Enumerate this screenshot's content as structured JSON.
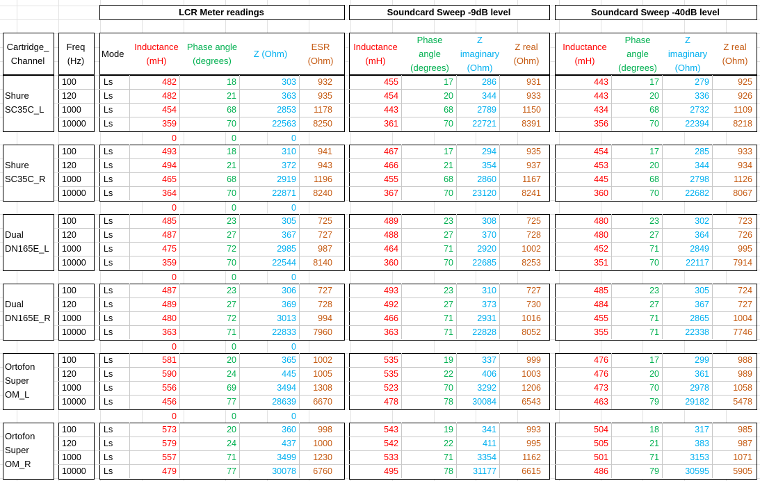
{
  "titles": {
    "lcr": "LCR Meter readings",
    "sweep9": "Soundcard Sweep -9dB level",
    "sweep40": "Soundcard Sweep -40dB level"
  },
  "headers": {
    "cartridge": [
      "Cartridge_",
      "Channel"
    ],
    "freq": [
      "Freq",
      "(Hz)"
    ],
    "mode": "Mode",
    "lcr": [
      [
        "Inductance",
        "(mH)"
      ],
      [
        "Phase angle",
        "(degrees)"
      ],
      [
        "Z (Ohm)"
      ],
      [
        "ESR",
        "(Ohm)"
      ]
    ],
    "sweep": [
      [
        "Inductance",
        "(mH)"
      ],
      [
        "Phase",
        "angle",
        "(degrees)"
      ],
      [
        "Z",
        "imaginary",
        "(Ohm)"
      ],
      [
        "Z real",
        "(Ohm)"
      ]
    ]
  },
  "colors": {
    "inductance": "#ff0000",
    "phase": "#00b050",
    "z": "#00b0f0",
    "esr": "#c55a11"
  },
  "groups": [
    {
      "name": [
        "Shure",
        "SC35C_L"
      ],
      "rows": [
        {
          "f": "100",
          "m": "Ls",
          "lcr": [
            "482",
            "18",
            "303",
            "932"
          ],
          "s9": [
            "455",
            "17",
            "286",
            "931"
          ],
          "s40": [
            "443",
            "17",
            "279",
            "925"
          ]
        },
        {
          "f": "120",
          "m": "Ls",
          "lcr": [
            "482",
            "21",
            "363",
            "935"
          ],
          "s9": [
            "454",
            "20",
            "344",
            "933"
          ],
          "s40": [
            "443",
            "20",
            "336",
            "926"
          ]
        },
        {
          "f": "1000",
          "m": "Ls",
          "lcr": [
            "454",
            "68",
            "2853",
            "1178"
          ],
          "s9": [
            "443",
            "68",
            "2789",
            "1150"
          ],
          "s40": [
            "434",
            "68",
            "2732",
            "1109"
          ]
        },
        {
          "f": "10000",
          "m": "Ls",
          "lcr": [
            "359",
            "70",
            "22563",
            "8250"
          ],
          "s9": [
            "361",
            "70",
            "22721",
            "8391"
          ],
          "s40": [
            "356",
            "70",
            "22394",
            "8218"
          ]
        }
      ],
      "zeros": [
        "0",
        "0",
        "0"
      ]
    },
    {
      "name": [
        "Shure",
        "SC35C_R"
      ],
      "rows": [
        {
          "f": "100",
          "m": "Ls",
          "lcr": [
            "493",
            "18",
            "310",
            "941"
          ],
          "s9": [
            "467",
            "17",
            "294",
            "935"
          ],
          "s40": [
            "454",
            "17",
            "285",
            "933"
          ]
        },
        {
          "f": "120",
          "m": "Ls",
          "lcr": [
            "494",
            "21",
            "372",
            "943"
          ],
          "s9": [
            "466",
            "21",
            "354",
            "937"
          ],
          "s40": [
            "453",
            "20",
            "344",
            "934"
          ]
        },
        {
          "f": "1000",
          "m": "Ls",
          "lcr": [
            "465",
            "68",
            "2919",
            "1196"
          ],
          "s9": [
            "455",
            "68",
            "2860",
            "1167"
          ],
          "s40": [
            "445",
            "68",
            "2798",
            "1126"
          ]
        },
        {
          "f": "10000",
          "m": "Ls",
          "lcr": [
            "364",
            "70",
            "22871",
            "8240"
          ],
          "s9": [
            "367",
            "70",
            "23120",
            "8241"
          ],
          "s40": [
            "360",
            "70",
            "22682",
            "8067"
          ]
        }
      ],
      "zeros": [
        "0",
        "0",
        "0"
      ]
    },
    {
      "name": [
        "Dual",
        "DN165E_L"
      ],
      "rows": [
        {
          "f": "100",
          "m": "Ls",
          "lcr": [
            "485",
            "23",
            "305",
            "725"
          ],
          "s9": [
            "489",
            "23",
            "308",
            "725"
          ],
          "s40": [
            "480",
            "23",
            "302",
            "723"
          ]
        },
        {
          "f": "120",
          "m": "Ls",
          "lcr": [
            "487",
            "27",
            "367",
            "727"
          ],
          "s9": [
            "488",
            "27",
            "370",
            "728"
          ],
          "s40": [
            "480",
            "27",
            "364",
            "726"
          ]
        },
        {
          "f": "1000",
          "m": "Ls",
          "lcr": [
            "475",
            "72",
            "2985",
            "987"
          ],
          "s9": [
            "464",
            "71",
            "2920",
            "1002"
          ],
          "s40": [
            "452",
            "71",
            "2849",
            "995"
          ]
        },
        {
          "f": "10000",
          "m": "Ls",
          "lcr": [
            "359",
            "70",
            "22544",
            "8140"
          ],
          "s9": [
            "360",
            "70",
            "22685",
            "8253"
          ],
          "s40": [
            "351",
            "70",
            "22117",
            "7914"
          ]
        }
      ],
      "zeros": [
        "0",
        "0",
        "0"
      ]
    },
    {
      "name": [
        "Dual",
        "DN165E_R"
      ],
      "rows": [
        {
          "f": "100",
          "m": "Ls",
          "lcr": [
            "487",
            "23",
            "306",
            "727"
          ],
          "s9": [
            "493",
            "23",
            "310",
            "727"
          ],
          "s40": [
            "485",
            "23",
            "305",
            "724"
          ]
        },
        {
          "f": "120",
          "m": "Ls",
          "lcr": [
            "489",
            "27",
            "369",
            "728"
          ],
          "s9": [
            "492",
            "27",
            "373",
            "730"
          ],
          "s40": [
            "484",
            "27",
            "367",
            "727"
          ]
        },
        {
          "f": "1000",
          "m": "Ls",
          "lcr": [
            "480",
            "72",
            "3013",
            "994"
          ],
          "s9": [
            "466",
            "71",
            "2931",
            "1016"
          ],
          "s40": [
            "455",
            "71",
            "2865",
            "1004"
          ]
        },
        {
          "f": "10000",
          "m": "Ls",
          "lcr": [
            "363",
            "71",
            "22833",
            "7960"
          ],
          "s9": [
            "363",
            "71",
            "22828",
            "8052"
          ],
          "s40": [
            "355",
            "71",
            "22338",
            "7746"
          ]
        }
      ],
      "zeros": [
        "0",
        "0",
        "0"
      ]
    },
    {
      "name": [
        "Ortofon",
        "Super",
        "OM_L"
      ],
      "rows": [
        {
          "f": "100",
          "m": "Ls",
          "lcr": [
            "581",
            "20",
            "365",
            "1002"
          ],
          "s9": [
            "535",
            "19",
            "337",
            "999"
          ],
          "s40": [
            "476",
            "17",
            "299",
            "988"
          ]
        },
        {
          "f": "120",
          "m": "Ls",
          "lcr": [
            "590",
            "24",
            "445",
            "1005"
          ],
          "s9": [
            "535",
            "22",
            "406",
            "1003"
          ],
          "s40": [
            "476",
            "20",
            "361",
            "989"
          ]
        },
        {
          "f": "1000",
          "m": "Ls",
          "lcr": [
            "556",
            "69",
            "3494",
            "1308"
          ],
          "s9": [
            "523",
            "70",
            "3292",
            "1206"
          ],
          "s40": [
            "473",
            "70",
            "2978",
            "1058"
          ]
        },
        {
          "f": "10000",
          "m": "Ls",
          "lcr": [
            "456",
            "77",
            "28639",
            "6670"
          ],
          "s9": [
            "478",
            "78",
            "30084",
            "6543"
          ],
          "s40": [
            "463",
            "79",
            "29182",
            "5478"
          ]
        }
      ],
      "zeros": [
        "0",
        "0",
        "0"
      ]
    },
    {
      "name": [
        "Ortofon",
        "Super",
        "OM_R"
      ],
      "rows": [
        {
          "f": "100",
          "m": "Ls",
          "lcr": [
            "573",
            "20",
            "360",
            "998"
          ],
          "s9": [
            "543",
            "19",
            "341",
            "993"
          ],
          "s40": [
            "504",
            "18",
            "317",
            "985"
          ]
        },
        {
          "f": "120",
          "m": "Ls",
          "lcr": [
            "579",
            "24",
            "437",
            "1000"
          ],
          "s9": [
            "542",
            "22",
            "411",
            "995"
          ],
          "s40": [
            "505",
            "21",
            "383",
            "987"
          ]
        },
        {
          "f": "1000",
          "m": "Ls",
          "lcr": [
            "557",
            "71",
            "3499",
            "1230"
          ],
          "s9": [
            "533",
            "71",
            "3354",
            "1162"
          ],
          "s40": [
            "501",
            "71",
            "3153",
            "1071"
          ]
        },
        {
          "f": "10000",
          "m": "Ls",
          "lcr": [
            "479",
            "77",
            "30078",
            "6760"
          ],
          "s9": [
            "495",
            "78",
            "31177",
            "6615"
          ],
          "s40": [
            "486",
            "79",
            "30595",
            "5905"
          ]
        }
      ],
      "zeros": []
    }
  ]
}
